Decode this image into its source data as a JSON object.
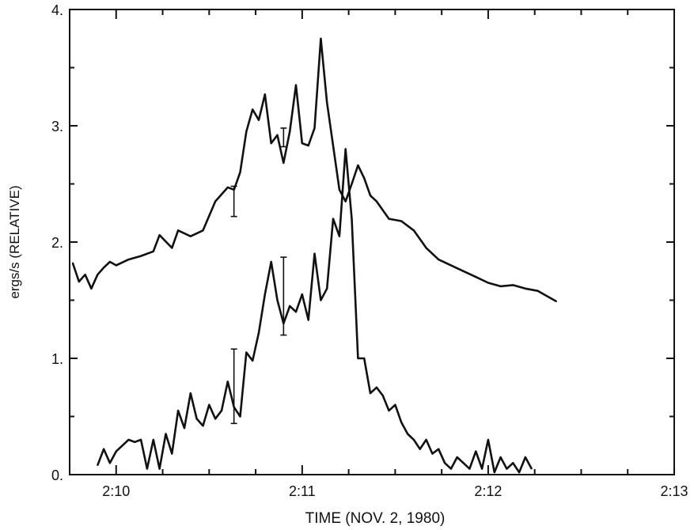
{
  "chart_data": {
    "type": "line",
    "xlabel": "TIME (NOV. 2, 1980)",
    "ylabel": "ergs/s (RELATIVE)",
    "xlim": [
      "2:09:45",
      "2:13:00"
    ],
    "ylim": [
      0,
      4
    ],
    "x_tick_labels": [
      "2:10",
      "2:11",
      "2:12",
      "2:13"
    ],
    "y_tick_labels": [
      "0.",
      "1.",
      "2.",
      "3.",
      "4."
    ],
    "grid": false,
    "series": [
      {
        "x": [
          "2:09:46",
          "2:09:48",
          "2:09:50",
          "2:09:52",
          "2:09:54",
          "2:09:56",
          "2:09:58",
          "2:10:00",
          "2:10:04",
          "2:10:08",
          "2:10:12",
          "2:10:14",
          "2:10:18",
          "2:10:20",
          "2:10:24",
          "2:10:28",
          "2:10:32",
          "2:10:36",
          "2:10:38",
          "2:10:40",
          "2:10:42",
          "2:10:44",
          "2:10:46",
          "2:10:48",
          "2:10:50",
          "2:10:52",
          "2:10:54",
          "2:10:56",
          "2:10:58",
          "2:11:00",
          "2:11:02",
          "2:11:04",
          "2:11:06",
          "2:11:08",
          "2:11:12",
          "2:11:14",
          "2:11:16",
          "2:11:18",
          "2:11:20",
          "2:11:22",
          "2:11:24",
          "2:11:28",
          "2:11:32",
          "2:11:36",
          "2:11:40",
          "2:11:44",
          "2:11:48",
          "2:11:52",
          "2:11:56",
          "2:12:00",
          "2:12:04",
          "2:12:08",
          "2:12:12",
          "2:12:16",
          "2:12:20",
          "2:12:22"
        ],
        "y": [
          1.82,
          1.66,
          1.72,
          1.6,
          1.72,
          1.78,
          1.83,
          1.8,
          1.85,
          1.88,
          1.92,
          2.06,
          1.95,
          2.1,
          2.05,
          2.1,
          2.35,
          2.47,
          2.45,
          2.6,
          2.95,
          3.14,
          3.05,
          3.27,
          2.85,
          2.92,
          2.68,
          2.95,
          3.35,
          2.85,
          2.83,
          2.98,
          3.75,
          3.2,
          2.45,
          2.35,
          2.5,
          2.66,
          2.55,
          2.4,
          2.35,
          2.2,
          2.18,
          2.1,
          1.95,
          1.85,
          1.8,
          1.75,
          1.7,
          1.65,
          1.62,
          1.63,
          1.6,
          1.58,
          1.52,
          1.49
        ]
      },
      {
        "x": [
          "2:09:54",
          "2:09:56",
          "2:09:58",
          "2:10:00",
          "2:10:02",
          "2:10:04",
          "2:10:06",
          "2:10:08",
          "2:10:10",
          "2:10:12",
          "2:10:14",
          "2:10:16",
          "2:10:18",
          "2:10:20",
          "2:10:22",
          "2:10:24",
          "2:10:26",
          "2:10:28",
          "2:10:30",
          "2:10:32",
          "2:10:34",
          "2:10:36",
          "2:10:38",
          "2:10:40",
          "2:10:42",
          "2:10:44",
          "2:10:46",
          "2:10:48",
          "2:10:50",
          "2:10:52",
          "2:10:54",
          "2:10:56",
          "2:10:58",
          "2:11:00",
          "2:11:02",
          "2:11:04",
          "2:11:06",
          "2:11:08",
          "2:11:10",
          "2:11:12",
          "2:11:14",
          "2:11:16",
          "2:11:18",
          "2:11:20",
          "2:11:22",
          "2:11:24",
          "2:11:26",
          "2:11:28",
          "2:11:30",
          "2:11:32",
          "2:11:34",
          "2:11:36",
          "2:11:38",
          "2:11:40",
          "2:11:42",
          "2:11:44",
          "2:11:46",
          "2:11:48",
          "2:11:50",
          "2:11:52",
          "2:11:54",
          "2:11:56",
          "2:11:58",
          "2:12:00",
          "2:12:02",
          "2:12:04",
          "2:12:06",
          "2:12:08",
          "2:12:10",
          "2:12:12",
          "2:12:14"
        ],
        "y": [
          0.08,
          0.22,
          0.1,
          0.2,
          0.25,
          0.3,
          0.28,
          0.3,
          0.05,
          0.3,
          0.05,
          0.35,
          0.18,
          0.55,
          0.4,
          0.7,
          0.48,
          0.42,
          0.6,
          0.48,
          0.55,
          0.8,
          0.58,
          0.5,
          1.05,
          0.98,
          1.22,
          1.55,
          1.83,
          1.5,
          1.3,
          1.45,
          1.4,
          1.55,
          1.33,
          1.9,
          1.5,
          1.6,
          2.2,
          2.05,
          2.8,
          2.2,
          1.0,
          1.0,
          0.7,
          0.75,
          0.68,
          0.55,
          0.6,
          0.45,
          0.35,
          0.3,
          0.22,
          0.3,
          0.18,
          0.22,
          0.1,
          0.05,
          0.15,
          0.1,
          0.05,
          0.2,
          0.05,
          0.3,
          0.02,
          0.15,
          0.05,
          0.1,
          0.02,
          0.15,
          0.05
        ]
      }
    ],
    "error_bars": [
      {
        "x": "2:10:38",
        "low": 2.22,
        "high": 2.48
      },
      {
        "x": "2:10:54",
        "low": 2.82,
        "high": 2.98
      },
      {
        "x": "2:10:38",
        "low": 0.44,
        "high": 1.08
      },
      {
        "x": "2:10:54",
        "low": 1.2,
        "high": 1.87
      }
    ]
  }
}
